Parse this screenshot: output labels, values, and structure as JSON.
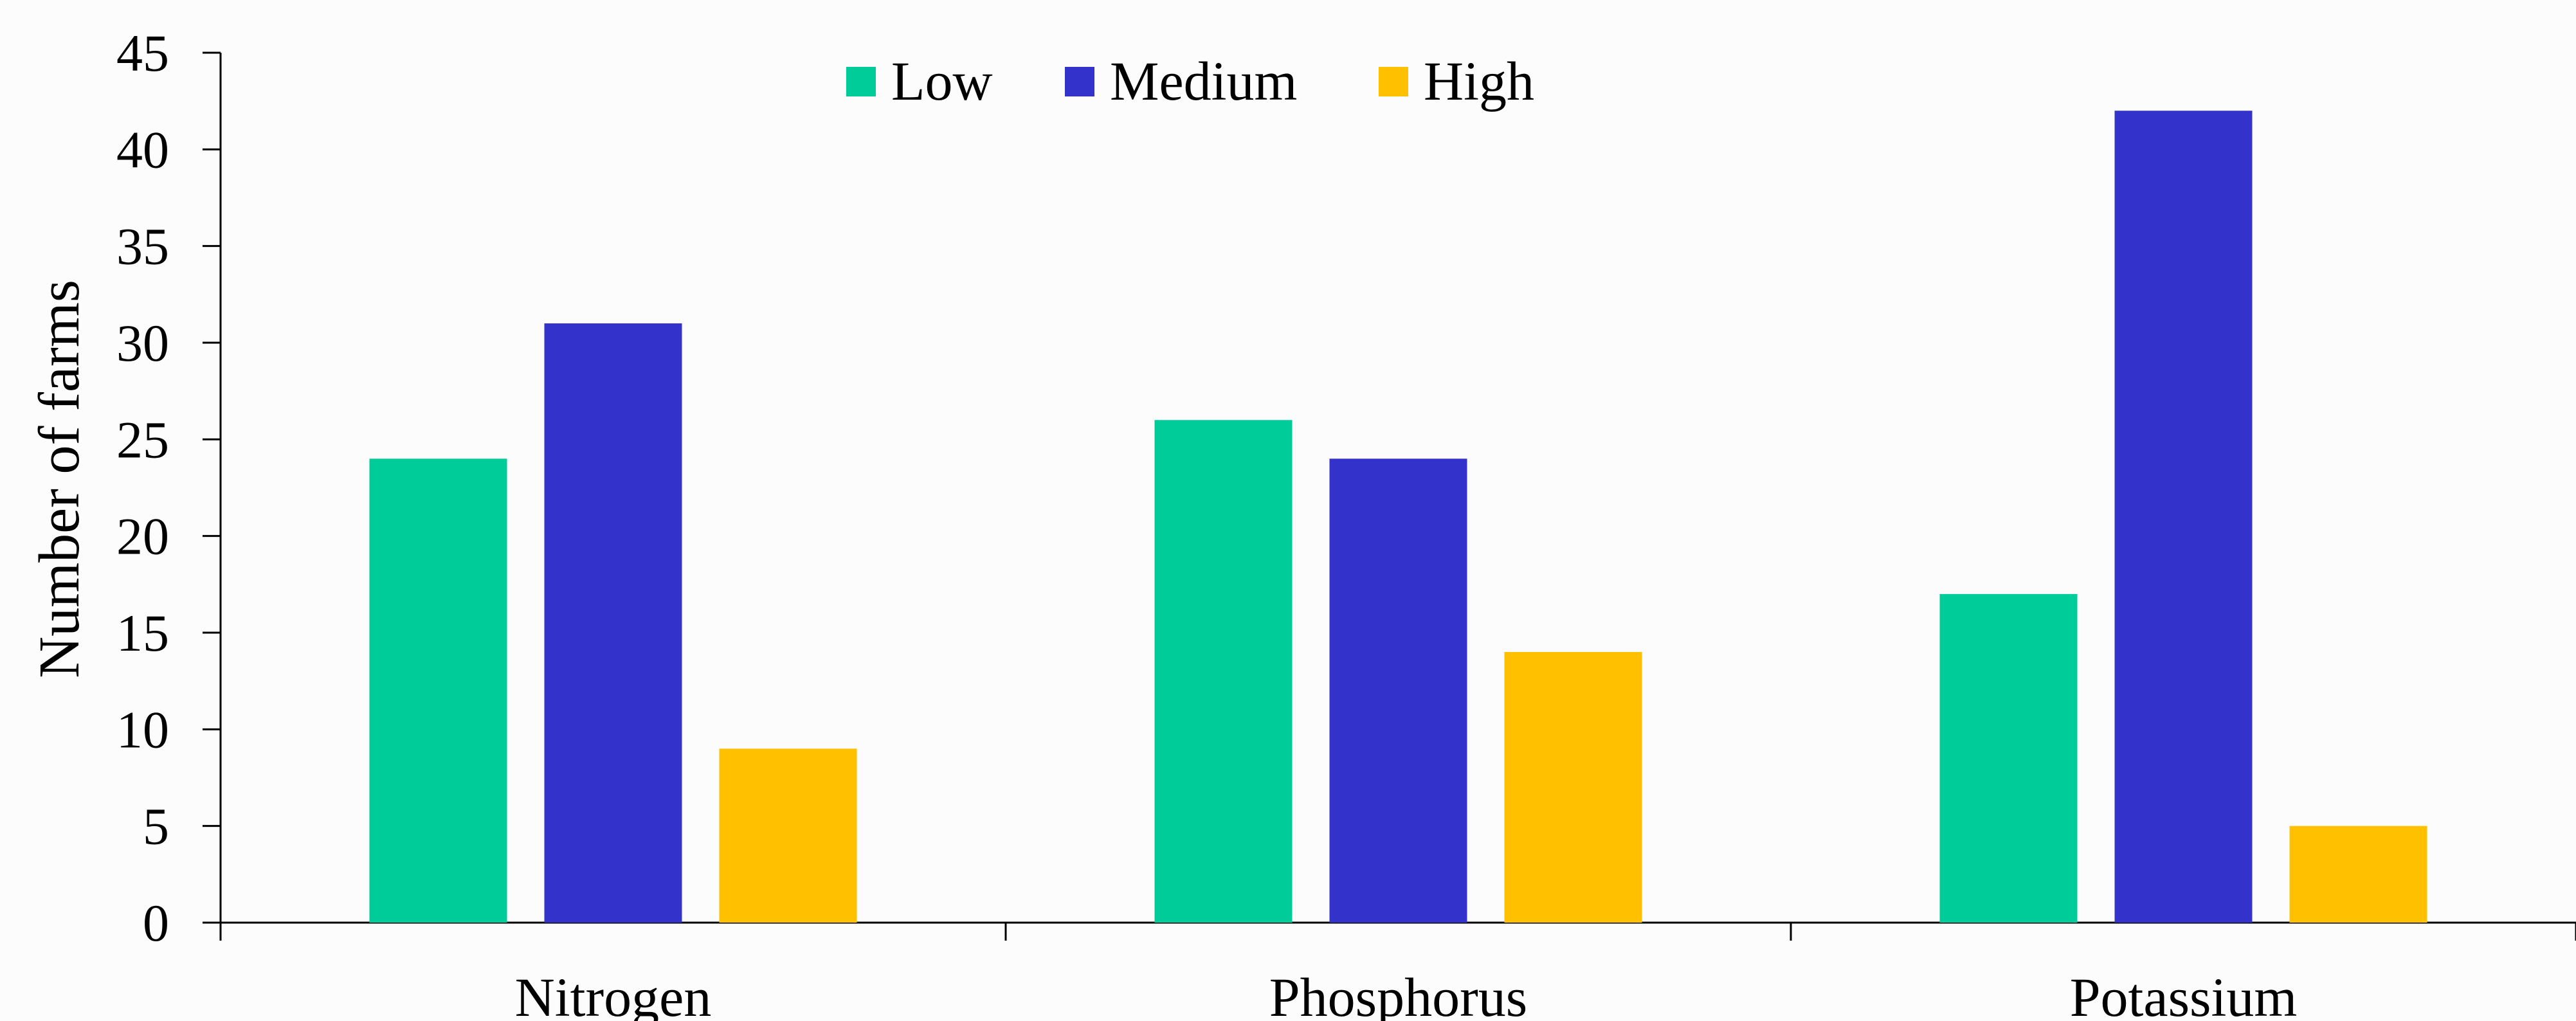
{
  "chart_data": {
    "type": "bar",
    "categories": [
      "Nitrogen",
      "Phosphorus",
      "Potassium"
    ],
    "series": [
      {
        "name": "Low",
        "values": [
          24,
          26,
          17
        ],
        "color": "#00cc99"
      },
      {
        "name": "Medium",
        "values": [
          31,
          24,
          42
        ],
        "color": "#3333cc"
      },
      {
        "name": "High",
        "values": [
          9,
          14,
          5
        ],
        "color": "#ffc000"
      }
    ],
    "title": "",
    "xlabel": "",
    "ylabel": "Number of farms",
    "ylim": [
      0,
      45
    ],
    "yticks": [
      0,
      5,
      10,
      15,
      20,
      25,
      30,
      35,
      40,
      45
    ],
    "grid": false,
    "legend_position": "top-center",
    "background": "#fcfcfc"
  }
}
